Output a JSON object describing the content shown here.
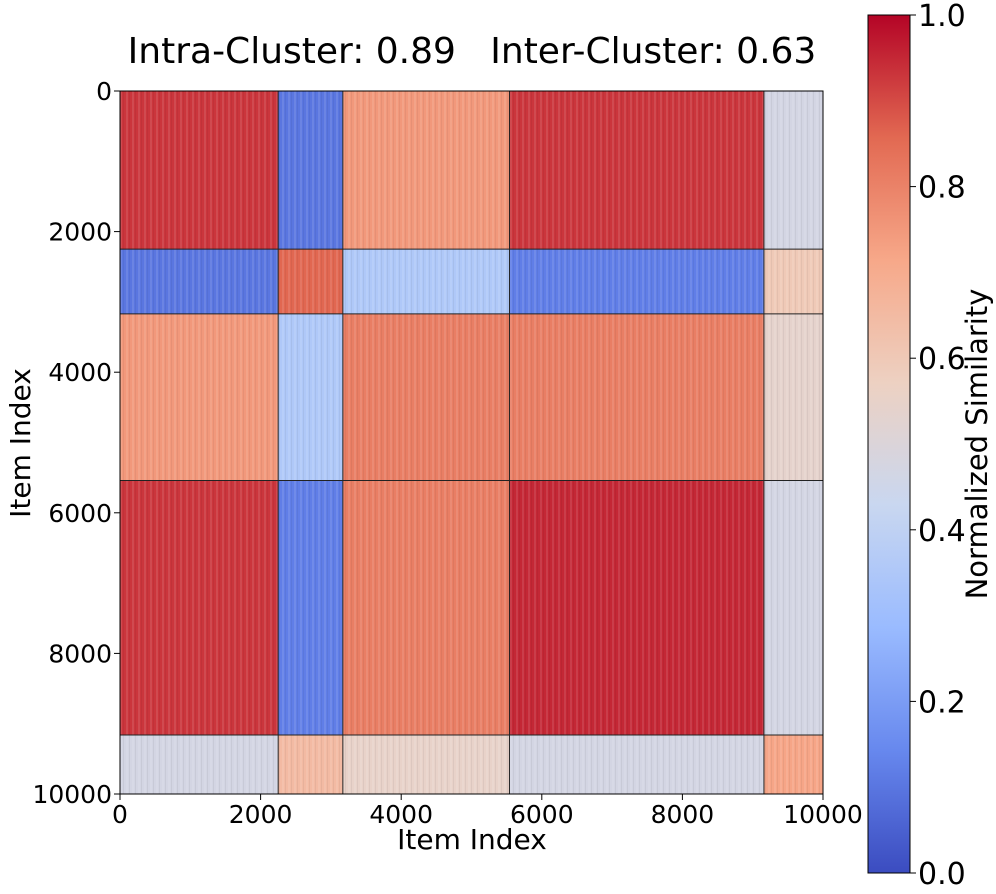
{
  "chart_data": {
    "type": "heatmap",
    "title": "Intra-Cluster: 0.89   Inter-Cluster: 0.63",
    "xlabel": "Item Index",
    "ylabel": "Item Index",
    "xlim": [
      0,
      10000
    ],
    "ylim": [
      10000,
      0
    ],
    "x_ticks": [
      "0",
      "2000",
      "4000",
      "6000",
      "8000",
      "10000"
    ],
    "y_ticks": [
      "0",
      "2000",
      "4000",
      "6000",
      "8000",
      "10000"
    ],
    "cluster_boundaries": [
      0,
      2250,
      3170,
      5540,
      9160,
      10000
    ],
    "block_values": [
      [
        0.93,
        0.1,
        0.75,
        0.93,
        0.47
      ],
      [
        0.1,
        0.86,
        0.35,
        0.12,
        0.6
      ],
      [
        0.75,
        0.35,
        0.81,
        0.81,
        0.54
      ],
      [
        0.93,
        0.12,
        0.81,
        0.95,
        0.47
      ],
      [
        0.47,
        0.65,
        0.55,
        0.47,
        0.72
      ]
    ],
    "colormap": "coolwarm",
    "colormap_stops": [
      "#3b4cc0",
      "#6788ee",
      "#9abbff",
      "#c9d7f0",
      "#edd1c2",
      "#f7a889",
      "#e26952",
      "#b40426"
    ],
    "colorbar": {
      "label": "Normalized Similarity",
      "range": [
        0.0,
        1.0
      ],
      "ticks": [
        "0.0",
        "0.2",
        "0.4",
        "0.6",
        "0.8",
        "1.0"
      ]
    }
  }
}
